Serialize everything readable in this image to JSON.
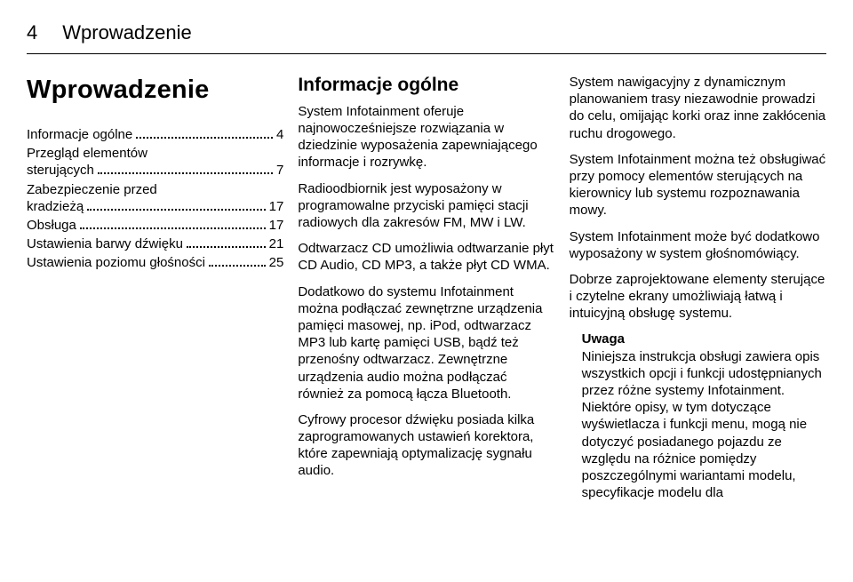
{
  "header": {
    "page_number": "4",
    "title": "Wprowadzenie"
  },
  "col1": {
    "heading": "Wprowadzenie",
    "toc": [
      {
        "label": "Informacje ogólne",
        "page": "4"
      },
      {
        "label_line1": "Przegląd elementów",
        "label_line2": "sterujących",
        "page": "7"
      },
      {
        "label_line1": "Zabezpieczenie przed",
        "label_line2": "kradzieżą",
        "page": "17"
      },
      {
        "label": "Obsługa",
        "page": "17"
      },
      {
        "label": "Ustawienia barwy dźwięku",
        "page": "21"
      },
      {
        "label": "Ustawienia poziomu głośności",
        "page": "25"
      }
    ]
  },
  "col2": {
    "heading": "Informacje ogólne",
    "p1": "System Infotainment oferuje najnowocześniejsze rozwiązania w dziedzinie wyposażenia zapewniającego informacje i rozrywkę.",
    "p2": "Radioodbiornik jest wyposażony w programowalne przyciski pamięci stacji radiowych dla zakresów FM, MW i LW.",
    "p3": "Odtwarzacz CD umożliwia odtwarzanie płyt CD Audio, CD MP3, a także płyt CD WMA.",
    "p4": "Dodatkowo do systemu Infotainment można podłączać zewnętrzne urządzenia pamięci masowej, np. iPod, odtwarzacz MP3 lub kartę pamięci USB, bądź też przenośny odtwarzacz. Zewnętrzne urządzenia audio można podłączać również za pomocą łącza Bluetooth.",
    "p5": "Cyfrowy procesor dźwięku posiada kilka zaprogramowanych ustawień korektora, które zapewniają optymalizację sygnału audio."
  },
  "col3": {
    "p1": "System nawigacyjny z dynamicznym planowaniem trasy niezawodnie prowadzi do celu, omijając korki oraz inne zakłócenia ruchu drogowego.",
    "p2": "System Infotainment można też obsługiwać przy pomocy elementów sterujących na kierownicy lub systemu rozpoznawania mowy.",
    "p3": "System Infotainment może być dodatkowo wyposażony w system głośnomówiący.",
    "p4": "Dobrze zaprojektowane elementy sterujące i czytelne ekrany umożliwiają łatwą i intuicyjną obsługę systemu.",
    "note_heading": "Uwaga",
    "note_body": "Niniejsza instrukcja obsługi zawiera opis wszystkich opcji i funkcji udostępnianych przez różne systemy Infotainment. Niektóre opisy, w tym dotyczące wyświetlacza i funkcji menu, mogą nie dotyczyć posiadanego pojazdu ze względu na różnice pomiędzy poszczególnymi wariantami modelu, specyfikacje modelu dla"
  }
}
